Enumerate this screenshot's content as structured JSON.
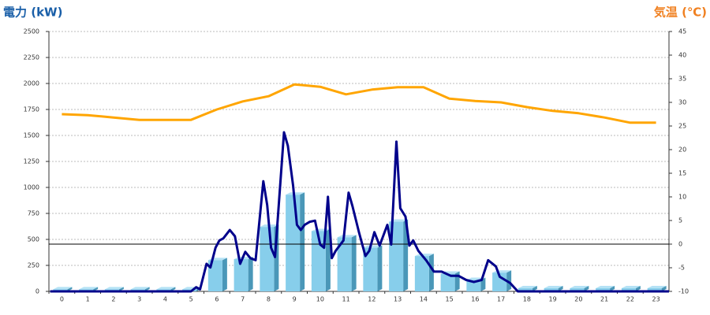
{
  "chart_data": {
    "type": "bar",
    "y_title": "電力 (kW)",
    "y2_title": "気温 (℃)",
    "categories": [
      "0",
      "1",
      "2",
      "3",
      "4",
      "5",
      "6",
      "7",
      "8",
      "9",
      "10",
      "11",
      "12",
      "13",
      "14",
      "15",
      "16",
      "17",
      "18",
      "19",
      "20",
      "21",
      "22",
      "23"
    ],
    "ylim": [
      0,
      2500
    ],
    "yticks": [
      0,
      250,
      500,
      750,
      1000,
      1250,
      1500,
      1750,
      2000,
      2250,
      2500
    ],
    "y2lim": [
      -10,
      45
    ],
    "y2ticks": [
      -10,
      -5,
      0,
      5,
      10,
      15,
      20,
      25,
      30,
      35,
      40,
      45
    ],
    "y2_reference": 0,
    "grid": true,
    "series": [
      {
        "type": "bar",
        "color": "#87ceeb",
        "values": [
          20,
          20,
          20,
          20,
          20,
          20,
          300,
          310,
          620,
          930,
          580,
          520,
          420,
          670,
          340,
          170,
          110,
          180,
          30,
          30,
          30,
          30,
          30,
          30
        ]
      },
      {
        "type": "line",
        "color": "#00008b",
        "x": [
          -0.45,
          5.0,
          5.2,
          5.35,
          5.6,
          5.75,
          5.95,
          6.1,
          6.25,
          6.5,
          6.7,
          6.9,
          7.1,
          7.3,
          7.5,
          7.8,
          7.95,
          8.1,
          8.25,
          8.6,
          8.75,
          8.95,
          9.1,
          9.25,
          9.4,
          9.6,
          9.8,
          10.0,
          10.15,
          10.3,
          10.45,
          10.6,
          10.9,
          11.1,
          11.25,
          11.5,
          11.75,
          11.9,
          12.1,
          12.3,
          12.6,
          12.75,
          12.95,
          13.1,
          13.3,
          13.45,
          13.6,
          13.8,
          14.1,
          14.4,
          14.7,
          15.05,
          15.35,
          15.65,
          15.95,
          16.25,
          16.5,
          16.8,
          16.95,
          17.35,
          17.65,
          23.5
        ],
        "values": [
          0,
          0,
          40,
          20,
          265,
          230,
          420,
          490,
          510,
          590,
          530,
          265,
          380,
          320,
          300,
          1060,
          830,
          420,
          330,
          1530,
          1400,
          1020,
          640,
          590,
          640,
          670,
          680,
          450,
          420,
          910,
          320,
          390,
          490,
          950,
          820,
          570,
          340,
          390,
          570,
          440,
          640,
          450,
          1440,
          800,
          720,
          440,
          490,
          390,
          300,
          190,
          190,
          150,
          150,
          110,
          90,
          110,
          300,
          240,
          140,
          80,
          0,
          0
        ]
      },
      {
        "type": "line",
        "axis": "y2",
        "color": "#ffa500",
        "values": [
          27.5,
          27.3,
          26.8,
          26.3,
          26.3,
          26.3,
          28.5,
          30.2,
          31.3,
          33.8,
          33.3,
          31.7,
          32.7,
          33.2,
          33.2,
          30.8,
          30.3,
          30.0,
          29.0,
          28.2,
          27.7,
          26.8,
          25.7,
          25.7
        ]
      }
    ]
  }
}
